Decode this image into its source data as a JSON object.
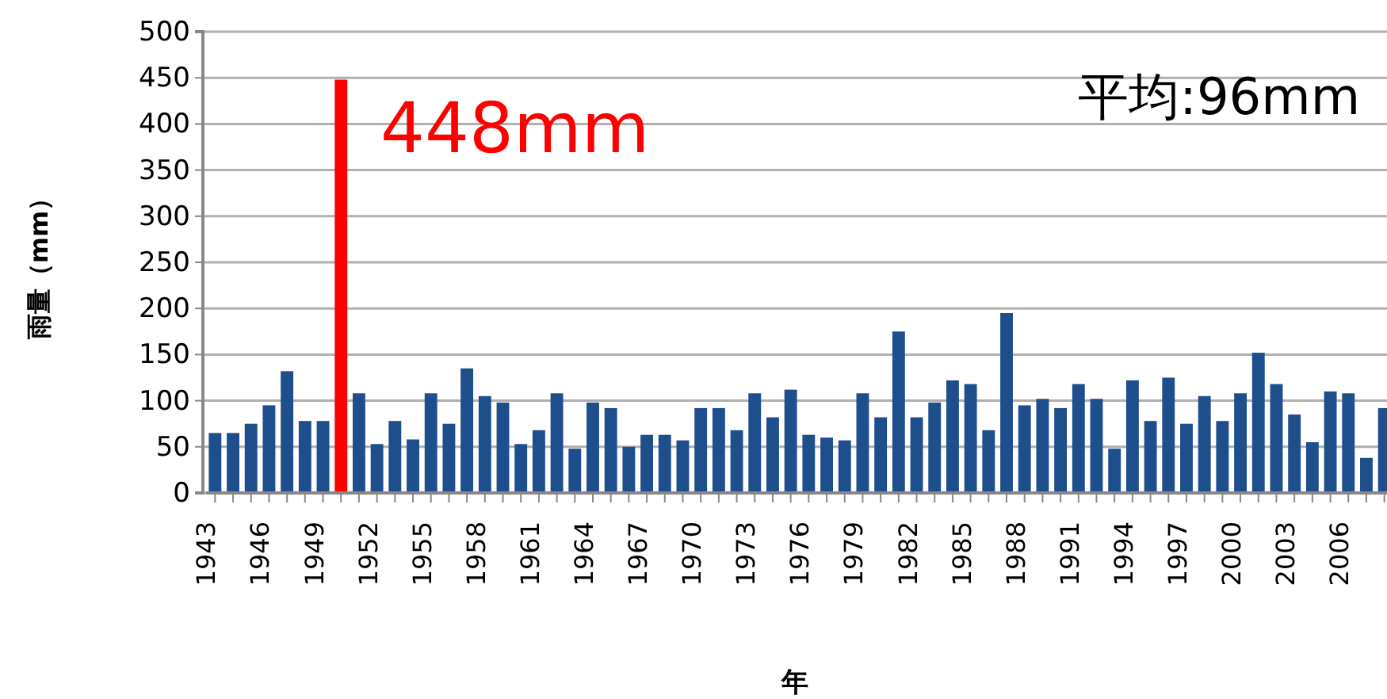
{
  "chart_data": {
    "type": "bar",
    "xlabel": "年",
    "ylabel": "雨量（mm）",
    "categories": [
      "1943",
      null,
      null,
      "1946",
      null,
      null,
      "1949",
      null,
      null,
      "1952",
      null,
      null,
      "1955",
      null,
      null,
      "1958",
      null,
      null,
      "1961",
      null,
      null,
      "1964",
      null,
      null,
      "1967",
      null,
      null,
      "1970",
      null,
      null,
      "1973",
      null,
      null,
      "1976",
      null,
      null,
      "1979",
      null,
      null,
      "1982",
      null,
      null,
      "1985",
      null,
      null,
      "1988",
      null,
      null,
      "1991",
      null,
      null,
      "1994",
      null,
      null,
      "1997",
      null,
      null,
      "2000",
      null,
      null,
      "2003",
      null,
      null,
      "2006",
      null,
      null
    ],
    "values": [
      65,
      65,
      75,
      95,
      132,
      78,
      78,
      448,
      108,
      53,
      78,
      58,
      108,
      75,
      135,
      105,
      98,
      53,
      68,
      108,
      48,
      98,
      92,
      50,
      63,
      63,
      57,
      92,
      92,
      68,
      108,
      82,
      112,
      63,
      60,
      57,
      108,
      82,
      175,
      82,
      98,
      122,
      118,
      68,
      195,
      95,
      102,
      92,
      118,
      102,
      48,
      122,
      78,
      125,
      75,
      105,
      78,
      108,
      152,
      118,
      85,
      55,
      110,
      108,
      38,
      92
    ],
    "colors": [
      "#1f4e8c",
      "#1f4e8c",
      "#1f4e8c",
      "#1f4e8c",
      "#1f4e8c",
      "#1f4e8c",
      "#1f4e8c",
      "#ff0000",
      "#1f4e8c",
      "#1f4e8c",
      "#1f4e8c",
      "#1f4e8c",
      "#1f4e8c",
      "#1f4e8c",
      "#1f4e8c",
      "#1f4e8c",
      "#1f4e8c",
      "#1f4e8c",
      "#1f4e8c",
      "#1f4e8c",
      "#1f4e8c",
      "#1f4e8c",
      "#1f4e8c",
      "#1f4e8c",
      "#1f4e8c",
      "#1f4e8c",
      "#1f4e8c",
      "#1f4e8c",
      "#1f4e8c",
      "#1f4e8c",
      "#1f4e8c",
      "#1f4e8c",
      "#1f4e8c",
      "#1f4e8c",
      "#1f4e8c",
      "#1f4e8c",
      "#1f4e8c",
      "#1f4e8c",
      "#1f4e8c",
      "#1f4e8c",
      "#1f4e8c",
      "#1f4e8c",
      "#1f4e8c",
      "#1f4e8c",
      "#1f4e8c",
      "#1f4e8c",
      "#1f4e8c",
      "#1f4e8c",
      "#1f4e8c",
      "#1f4e8c",
      "#1f4e8c",
      "#1f4e8c",
      "#1f4e8c",
      "#1f4e8c",
      "#1f4e8c",
      "#1f4e8c",
      "#1f4e8c",
      "#1f4e8c",
      "#1f4e8c",
      "#1f4e8c",
      "#1f4e8c",
      "#1f4e8c",
      "#1f4e8c",
      "#1f4e8c",
      "#1f4e8c",
      "#1f4e8c"
    ],
    "ylim": [
      0,
      500
    ],
    "yticks": [
      0,
      50,
      100,
      150,
      200,
      250,
      300,
      350,
      400,
      450,
      500
    ],
    "grid": "y",
    "annotations": [
      "448mm",
      "平均:96mm"
    ]
  }
}
